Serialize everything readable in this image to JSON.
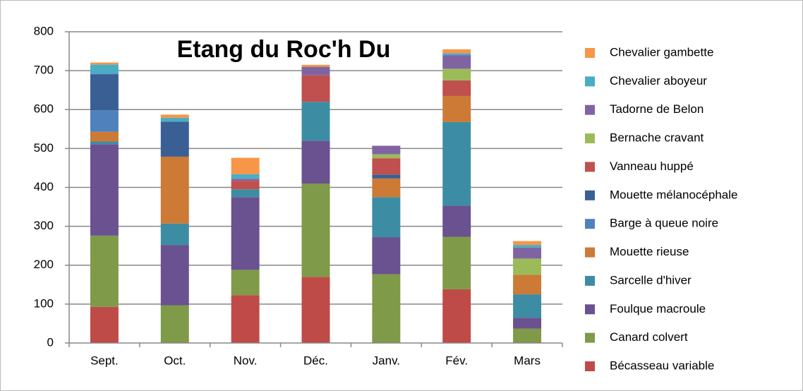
{
  "chart_data": {
    "type": "stacked_bar",
    "title": "Etang du Roc'h Du",
    "categories": [
      "Sept.",
      "Oct.",
      "Nov.",
      "Déc.",
      "Janv.",
      "Fév.",
      "Mars"
    ],
    "ylim": [
      0,
      800
    ],
    "yticks": [
      0,
      100,
      200,
      300,
      400,
      500,
      600,
      700,
      800
    ],
    "grid": true,
    "legend": "right",
    "series": [
      {
        "name": "Bécasseau variable",
        "color": "#be4b48",
        "values": [
          93,
          0,
          123,
          170,
          0,
          138,
          0
        ]
      },
      {
        "name": "Canard colvert",
        "color": "#7f9a48",
        "values": [
          183,
          97,
          65,
          240,
          177,
          135,
          37
        ]
      },
      {
        "name": "Foulque macroule",
        "color": "#6a5190",
        "values": [
          235,
          155,
          187,
          110,
          95,
          80,
          28
        ]
      },
      {
        "name": "Sarcelle d'hiver",
        "color": "#3c8da3",
        "values": [
          7,
          55,
          20,
          100,
          103,
          215,
          60
        ]
      },
      {
        "name": "Mouette rieuse",
        "color": "#cc7a35",
        "values": [
          25,
          172,
          0,
          0,
          48,
          67,
          50
        ]
      },
      {
        "name": "Barge à queue noire",
        "color": "#4f81bd",
        "values": [
          55,
          0,
          0,
          0,
          0,
          0,
          0
        ]
      },
      {
        "name": "Mouette mélanocéphale",
        "color": "#3a5f94",
        "values": [
          93,
          90,
          0,
          0,
          10,
          0,
          0
        ]
      },
      {
        "name": "Vanneau huppé",
        "color": "#c0504d",
        "values": [
          0,
          0,
          22,
          68,
          42,
          40,
          0
        ]
      },
      {
        "name": "Bernache cravant",
        "color": "#9bbb59",
        "values": [
          0,
          0,
          0,
          0,
          10,
          30,
          42
        ]
      },
      {
        "name": "Tadorne de Belon",
        "color": "#8064a2",
        "values": [
          0,
          0,
          5,
          22,
          22,
          35,
          28
        ]
      },
      {
        "name": "Chevalier aboyeur",
        "color": "#4bacc6",
        "values": [
          25,
          10,
          12,
          0,
          0,
          5,
          7
        ]
      },
      {
        "name": "Chevalier gambette",
        "color": "#f79646",
        "values": [
          5,
          8,
          42,
          5,
          0,
          10,
          10
        ]
      }
    ]
  }
}
